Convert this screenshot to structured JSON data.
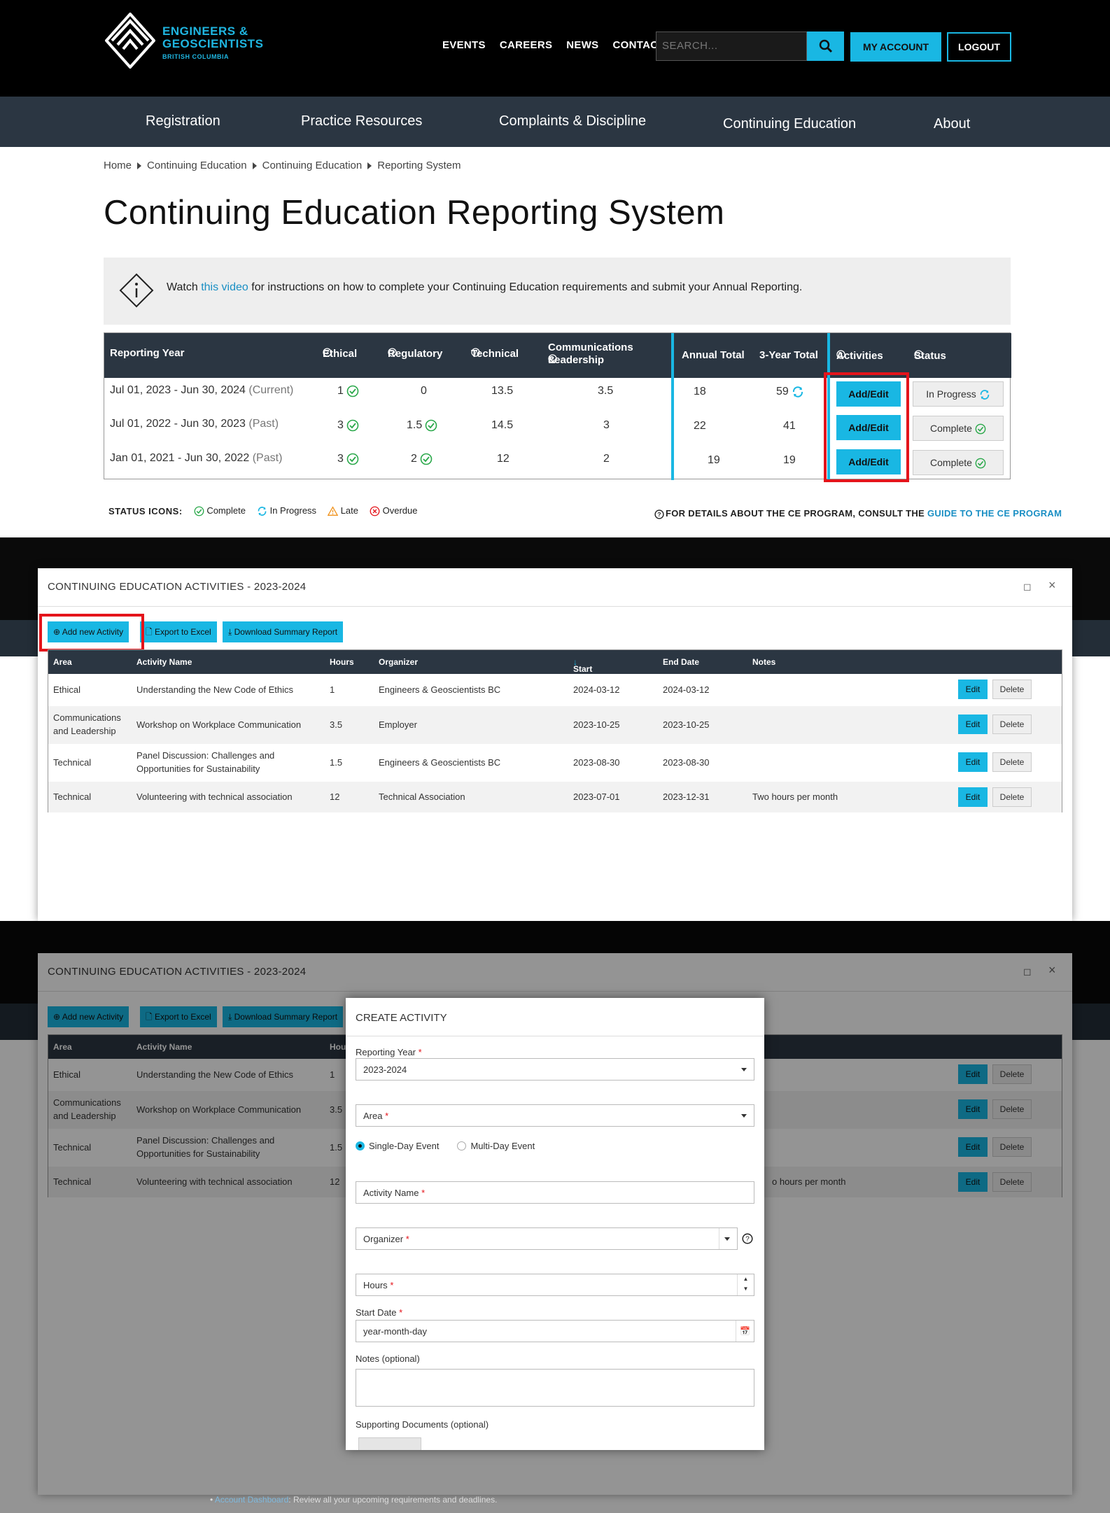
{
  "site": {
    "logo_line1": "ENGINEERS &",
    "logo_line2": "GEOSCIENTISTS",
    "logo_line3": "BRITISH COLUMBIA",
    "top_links": [
      "EVENTS",
      "CAREERS",
      "NEWS",
      "CONTACT"
    ],
    "search_placeholder": "SEARCH...",
    "my_account": "MY ACCOUNT",
    "logout": "LOGOUT",
    "nav": [
      "Registration",
      "Practice Resources",
      "Complaints & Discipline",
      "Continuing Education",
      "About"
    ],
    "accent_color": "#19b7e3",
    "nav_color": "#2b3642"
  },
  "breadcrumb": [
    "Home",
    "Continuing Education",
    "Continuing Education",
    "Reporting System"
  ],
  "page_title": "Continuing Education Reporting System",
  "info": {
    "pre": "Watch ",
    "link": "this video",
    "post": " for instructions on how to complete your Continuing Education requirements and submit your Annual Reporting."
  },
  "year_table": {
    "headers": [
      "Reporting Year",
      "Ethical",
      "Regulatory",
      "Technical",
      "Communications &",
      "Leadership",
      "Annual Total",
      "3-Year Total",
      "Activities",
      "Status"
    ],
    "rows": [
      {
        "year": "Jul 01, 2023 - Jun 30, 2024",
        "tag": "(Current)",
        "ethical": "1",
        "regulatory": "0",
        "technical": "13.5",
        "comm": "3.5",
        "annual": "18",
        "three": "59",
        "action": "Add/Edit",
        "status": "In Progress"
      },
      {
        "year": "Jul 01, 2022 - Jun 30, 2023",
        "tag": "(Past)",
        "ethical": "3",
        "regulatory": "1.5",
        "technical": "14.5",
        "comm": "3",
        "annual": "22",
        "three": "41",
        "action": "Add/Edit",
        "status": "Complete"
      },
      {
        "year": "Jan 01, 2021 - Jun 30, 2022",
        "tag": "(Past)",
        "ethical": "3",
        "regulatory": "2",
        "technical": "12",
        "comm": "2",
        "annual": "19",
        "three": "19",
        "action": "Add/Edit",
        "status": "Complete"
      }
    ]
  },
  "legend": {
    "label": "STATUS ICONS:",
    "items": [
      "Complete",
      "In Progress",
      "Late",
      "Overdue"
    ],
    "guide_pre": "FOR DETAILS ABOUT THE CE PROGRAM, CONSULT THE ",
    "guide_link": "GUIDE TO THE CE PROGRAM"
  },
  "activities_modal": {
    "title": "CONTINUING EDUCATION ACTIVITIES - 2023-2024",
    "buttons": [
      "Add new Activity",
      "Export to Excel",
      "Download Summary Report"
    ],
    "headers": [
      "Area",
      "Activity Name",
      "Hours",
      "Organizer",
      "Start Date",
      "End Date",
      "Notes"
    ],
    "rows": [
      {
        "area": "Ethical",
        "name": "Understanding the New Code of Ethics",
        "hours": "1",
        "organizer": "Engineers & Geoscientists BC",
        "start": "2024-03-12",
        "end": "2024-03-12",
        "notes": ""
      },
      {
        "area": "Communications and Leadership",
        "name": "Workshop on Workplace Communication",
        "hours": "3.5",
        "organizer": "Employer",
        "start": "2023-10-25",
        "end": "2023-10-25",
        "notes": ""
      },
      {
        "area": "Technical",
        "name": "Panel Discussion: Challenges and Opportunities for Sustainability",
        "hours": "1.5",
        "organizer": "Engineers & Geoscientists BC",
        "start": "2023-08-30",
        "end": "2023-08-30",
        "notes": ""
      },
      {
        "area": "Technical",
        "name": "Volunteering with technical association",
        "hours": "12",
        "organizer": "Technical Association",
        "start": "2023-07-01",
        "end": "2023-12-31",
        "notes": "Two hours per month"
      }
    ],
    "edit": "Edit",
    "delete": "Delete",
    "notes_partial": "o hours per month"
  },
  "create_modal": {
    "title": "CREATE ACTIVITY",
    "reporting_year_label": "Reporting Year",
    "reporting_year_value": "2023-2024",
    "area_placeholder": "Area",
    "single_day": "Single-Day Event",
    "multi_day": "Multi-Day Event",
    "activity_name_placeholder": "Activity Name",
    "organizer_placeholder": "Organizer",
    "hours_placeholder": "Hours",
    "start_date_label": "Start Date",
    "start_date_placeholder": "year-month-day",
    "notes_label": "Notes (optional)",
    "docs_label": "Supporting Documents (optional)"
  },
  "footer_bullet": {
    "link": "Account Dashboard",
    "text": ": Review all your upcoming requirements and deadlines."
  }
}
